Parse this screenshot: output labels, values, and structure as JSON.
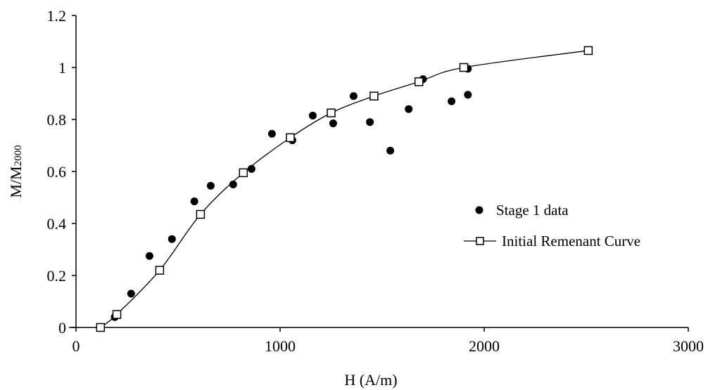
{
  "chart_data": {
    "type": "scatter",
    "xlabel": "H (A/m)",
    "ylabel_main": "M/M",
    "ylabel_sub": "2000",
    "xlim": [
      0,
      3000
    ],
    "ylim": [
      0,
      1.2
    ],
    "x_ticks": [
      "0",
      "1000",
      "2000",
      "3000"
    ],
    "y_ticks": [
      "0",
      "0.2",
      "0.4",
      "0.6",
      "0.8",
      "1",
      "1.2"
    ],
    "grid": false,
    "legend_position": "right",
    "series": [
      {
        "name": "Stage 1 data",
        "marker": "filled-circle",
        "color": "#000000",
        "x": [
          190,
          270,
          360,
          470,
          580,
          660,
          770,
          860,
          960,
          1060,
          1160,
          1260,
          1360,
          1440,
          1540,
          1630,
          1700,
          1840,
          1920,
          1920
        ],
        "y": [
          0.04,
          0.13,
          0.275,
          0.34,
          0.485,
          0.545,
          0.55,
          0.61,
          0.745,
          0.72,
          0.815,
          0.785,
          0.89,
          0.79,
          0.68,
          0.84,
          0.955,
          0.87,
          0.895,
          0.995
        ]
      },
      {
        "name": "Initial Remenant Curve",
        "marker": "open-square",
        "line": "smooth",
        "color": "#000000",
        "x": [
          120,
          200,
          410,
          610,
          820,
          1050,
          1250,
          1460,
          1680,
          1900,
          2510
        ],
        "y": [
          0.0,
          0.05,
          0.22,
          0.435,
          0.595,
          0.73,
          0.825,
          0.89,
          0.945,
          1.0,
          1.065
        ]
      }
    ]
  }
}
